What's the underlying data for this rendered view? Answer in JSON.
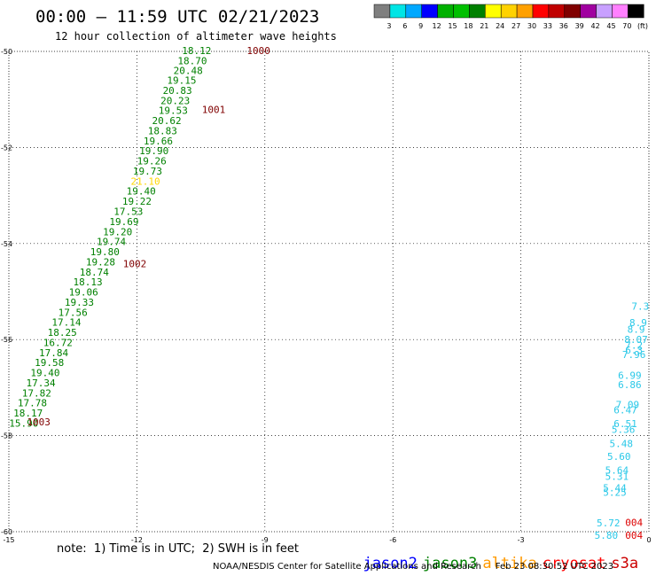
{
  "header": {
    "title": "00:00 – 11:59 UTC 02/21/2023",
    "subtitle": "12 hour collection of altimeter wave heights"
  },
  "legend": {
    "colors": [
      "#7f7f7f",
      "#00e5e5",
      "#00a8ff",
      "#0000ff",
      "#00b000",
      "#00c000",
      "#008000",
      "#ffff00",
      "#ffd200",
      "#ffa000",
      "#ff0000",
      "#c00000",
      "#800000",
      "#a000a0",
      "#c8a0ff",
      "#ff80ff",
      "#000000"
    ],
    "labels": [
      "3",
      "6",
      "9",
      "12",
      "15",
      "18",
      "21",
      "24",
      "27",
      "30",
      "33",
      "36",
      "39",
      "42",
      "45",
      "70"
    ],
    "unit": "(ft)"
  },
  "chart_data": {
    "type": "scatter",
    "x_ticks": [
      "-15",
      "-12",
      "-9",
      "-6",
      "-3",
      "0"
    ],
    "y_ticks": [
      "-50",
      "-52",
      "-54",
      "-56",
      "-58",
      "-60"
    ],
    "xlim": [
      -15,
      0
    ],
    "ylim": [
      -60,
      -50
    ],
    "grid": true,
    "series": [
      {
        "name": "jason3",
        "color": "#008000",
        "points": [
          {
            "lon": -10.6,
            "lat": -49.98,
            "text": "18.12"
          },
          {
            "lon": -10.7,
            "lat": -50.19,
            "text": "18.70"
          },
          {
            "lon": -10.8,
            "lat": -50.4,
            "text": "20.48"
          },
          {
            "lon": -10.95,
            "lat": -50.6,
            "text": "19.15"
          },
          {
            "lon": -11.05,
            "lat": -50.81,
            "text": "20.83"
          },
          {
            "lon": -11.1,
            "lat": -51.02,
            "text": "20.23"
          },
          {
            "lon": -11.15,
            "lat": -51.23,
            "text": "19.53"
          },
          {
            "lon": -11.3,
            "lat": -51.44,
            "text": "20.62"
          },
          {
            "lon": -11.4,
            "lat": -51.65,
            "text": "18.83"
          },
          {
            "lon": -11.5,
            "lat": -51.86,
            "text": "19.66"
          },
          {
            "lon": -11.6,
            "lat": -52.07,
            "text": "19.90"
          },
          {
            "lon": -11.65,
            "lat": -52.28,
            "text": "19.26"
          },
          {
            "lon": -11.75,
            "lat": -52.49,
            "text": "19.73"
          },
          {
            "lon": -11.8,
            "lat": -52.7,
            "text": "21.10",
            "color": "#ffd800"
          },
          {
            "lon": -11.9,
            "lat": -52.91,
            "text": "19.40"
          },
          {
            "lon": -12.0,
            "lat": -53.12,
            "text": "19.22"
          },
          {
            "lon": -12.2,
            "lat": -53.33,
            "text": "17.53"
          },
          {
            "lon": -12.3,
            "lat": -53.54,
            "text": "19.69"
          },
          {
            "lon": -12.45,
            "lat": -53.75,
            "text": "19.20"
          },
          {
            "lon": -12.6,
            "lat": -53.96,
            "text": "19.74"
          },
          {
            "lon": -12.75,
            "lat": -54.17,
            "text": "19.80"
          },
          {
            "lon": -12.85,
            "lat": -54.38,
            "text": "19.28"
          },
          {
            "lon": -13.0,
            "lat": -54.59,
            "text": "18.74"
          },
          {
            "lon": -13.15,
            "lat": -54.8,
            "text": "18.13"
          },
          {
            "lon": -13.25,
            "lat": -55.01,
            "text": "19.06"
          },
          {
            "lon": -13.35,
            "lat": -55.22,
            "text": "19.33"
          },
          {
            "lon": -13.5,
            "lat": -55.43,
            "text": "17.56"
          },
          {
            "lon": -13.65,
            "lat": -55.64,
            "text": "17.14"
          },
          {
            "lon": -13.75,
            "lat": -55.85,
            "text": "18.25"
          },
          {
            "lon": -13.85,
            "lat": -56.06,
            "text": "16.72"
          },
          {
            "lon": -13.95,
            "lat": -56.27,
            "text": "17.84"
          },
          {
            "lon": -14.05,
            "lat": -56.48,
            "text": "19.58"
          },
          {
            "lon": -14.15,
            "lat": -56.69,
            "text": "19.40"
          },
          {
            "lon": -14.25,
            "lat": -56.9,
            "text": "17.34"
          },
          {
            "lon": -14.35,
            "lat": -57.11,
            "text": "17.82"
          },
          {
            "lon": -14.45,
            "lat": -57.32,
            "text": "17.78"
          },
          {
            "lon": -14.55,
            "lat": -57.53,
            "text": "18.17"
          },
          {
            "lon": -14.65,
            "lat": -57.74,
            "text": "15.90"
          }
        ]
      },
      {
        "name": "s3a",
        "color": "#2ac8e8",
        "points": [
          {
            "lon": -0.2,
            "lat": -55.3,
            "text": "7.3"
          },
          {
            "lon": -0.25,
            "lat": -55.65,
            "text": "8.9"
          },
          {
            "lon": -0.3,
            "lat": -55.78,
            "text": "8.9"
          },
          {
            "lon": -0.3,
            "lat": -56.0,
            "text": "8.07"
          },
          {
            "lon": -0.35,
            "lat": -56.12,
            "text": "7.2"
          },
          {
            "lon": -0.35,
            "lat": -56.22,
            "text": "6.3"
          },
          {
            "lon": -0.35,
            "lat": -56.31,
            "text": "7.96"
          },
          {
            "lon": -0.45,
            "lat": -56.74,
            "text": "6.99"
          },
          {
            "lon": -0.45,
            "lat": -56.94,
            "text": "6.86"
          },
          {
            "lon": -0.5,
            "lat": -57.35,
            "text": "7.09"
          },
          {
            "lon": -0.55,
            "lat": -57.46,
            "text": "6.47"
          },
          {
            "lon": -0.55,
            "lat": -57.75,
            "text": "6.51"
          },
          {
            "lon": -0.6,
            "lat": -57.87,
            "text": "5.36"
          },
          {
            "lon": -0.65,
            "lat": -58.16,
            "text": "5.48"
          },
          {
            "lon": -0.7,
            "lat": -58.43,
            "text": "5.60"
          },
          {
            "lon": -0.75,
            "lat": -58.72,
            "text": "5.64"
          },
          {
            "lon": -0.75,
            "lat": -58.85,
            "text": "5.31"
          },
          {
            "lon": -0.8,
            "lat": -59.09,
            "text": "5.44"
          },
          {
            "lon": -0.8,
            "lat": -59.18,
            "text": "5.25"
          },
          {
            "lon": -0.95,
            "lat": -59.82,
            "text": "5.72"
          },
          {
            "lon": -1.0,
            "lat": -60.07,
            "text": "5.80"
          }
        ]
      }
    ],
    "markers": [
      {
        "lon": -9.15,
        "lat": -49.98,
        "text": "1000"
      },
      {
        "lon": -10.2,
        "lat": -51.21,
        "text": "1001"
      },
      {
        "lon": -12.05,
        "lat": -54.42,
        "text": "1002"
      },
      {
        "lon": -14.3,
        "lat": -57.71,
        "text": "1003"
      },
      {
        "lon": -0.35,
        "lat": -59.81,
        "text": "004"
      },
      {
        "lon": -0.35,
        "lat": -60.07,
        "text": "004"
      }
    ],
    "marker_color": "#800000",
    "red_marker_color": "#dd0000"
  },
  "footer": {
    "note": "note:  1) Time is in UTC;  2) SWH is in feet",
    "satellites": [
      {
        "name": "jason2",
        "color": "#0000ff"
      },
      {
        "name": "jason3",
        "color": "#008000"
      },
      {
        "name": "altika",
        "color": "#ff9900"
      },
      {
        "name": "cryosat",
        "color": "#ff0000"
      },
      {
        "name": "s3a",
        "color": "#cc0000"
      }
    ],
    "credit": "NOAA/NESDIS Center for Satellite Applications and Research     Feb 23 08:30:52 UTC 2023"
  }
}
